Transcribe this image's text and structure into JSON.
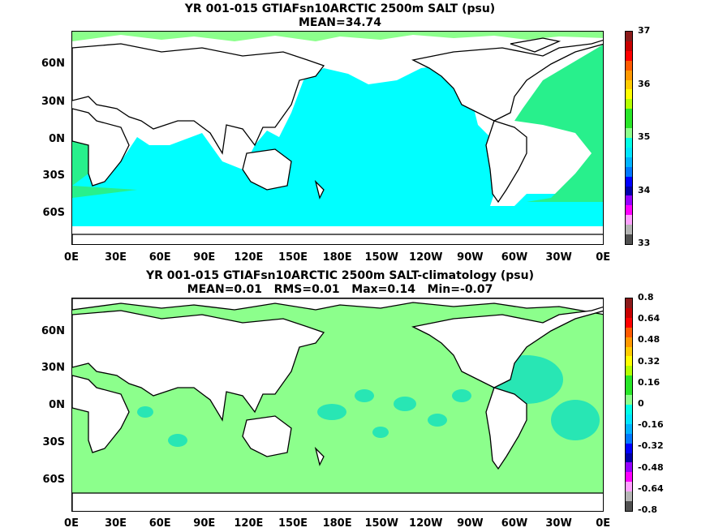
{
  "panels": [
    {
      "title_line1": "YR 001-015 GTIAFsn10ARCTIC 2500m SALT (psu)",
      "title_line2": "MEAN=34.74",
      "lat_labels": [
        "60N",
        "30N",
        "0N",
        "30S",
        "60S"
      ],
      "lon_labels": [
        "0E",
        "30E",
        "60E",
        "90E",
        "120E",
        "150E",
        "180E",
        "150W",
        "120W",
        "90W",
        "60W",
        "30W",
        "0E"
      ],
      "colorbar": {
        "labels": [
          "37",
          "36",
          "35",
          "34",
          "33"
        ],
        "colors": [
          "#8b1a1a",
          "#c80000",
          "#ff0000",
          "#ff5a00",
          "#ff9900",
          "#ffcc00",
          "#ffff00",
          "#b4ff00",
          "#28e628",
          "#28e628",
          "#8cff8c",
          "#00ffe6",
          "#00e6ff",
          "#00b4ff",
          "#0078ff",
          "#0000ff",
          "#0000aa",
          "#9600ff",
          "#ff00ff",
          "#ffa0ff",
          "#b4b4b4",
          "#505050"
        ]
      }
    },
    {
      "title_line1": "YR 001-015 GTIAFsn10ARCTIC 2500m SALT-climatology (psu)",
      "title_line2": "MEAN=0.01   RMS=0.01   Max=0.14   Min=-0.07",
      "lat_labels": [
        "60N",
        "30N",
        "0N",
        "30S",
        "60S"
      ],
      "lon_labels": [
        "0E",
        "30E",
        "60E",
        "90E",
        "120E",
        "150E",
        "180E",
        "150W",
        "120W",
        "90W",
        "60W",
        "30W",
        "0E"
      ],
      "colorbar": {
        "labels": [
          "0.8",
          "0.64",
          "0.48",
          "0.32",
          "0.16",
          "0",
          "-0.16",
          "-0.32",
          "-0.48",
          "-0.64",
          "-0.8"
        ],
        "colors": [
          "#8b1a1a",
          "#c80000",
          "#ff0000",
          "#ff5a00",
          "#ff9900",
          "#ffcc00",
          "#ffff00",
          "#b4ff00",
          "#28e628",
          "#28e628",
          "#8cff8c",
          "#00ffe6",
          "#00e6ff",
          "#00b4ff",
          "#0078ff",
          "#0000ff",
          "#0000aa",
          "#9600ff",
          "#ff00ff",
          "#ffa0ff",
          "#b4b4b4",
          "#505050"
        ]
      }
    }
  ],
  "colors": {
    "ocean_top": "#00ffff",
    "ocean_top_edge": "#8cff8c",
    "atlantic_top": "#28f08c",
    "ocean_bottom": "#8cff8c",
    "ocean_bottom_alt": "#28e6b4",
    "land": "#ffffff",
    "coast": "#000000"
  }
}
